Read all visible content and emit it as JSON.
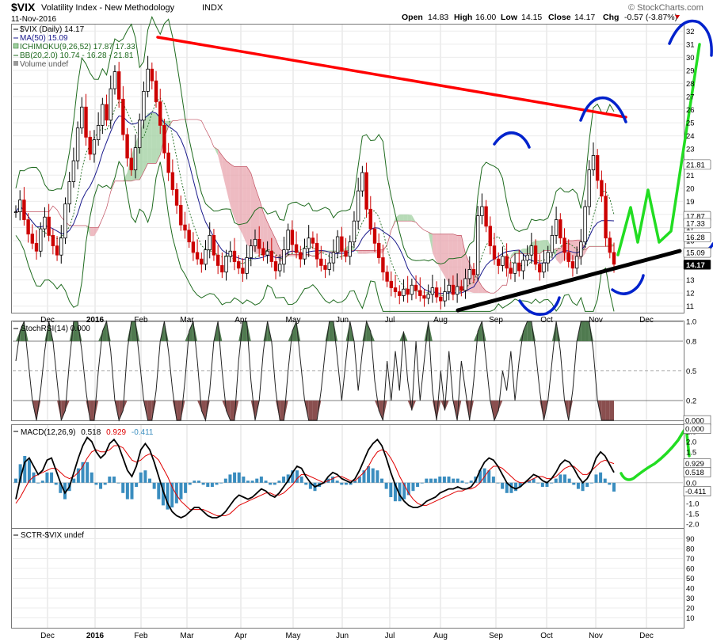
{
  "header": {
    "symbol": "$VIX",
    "name": "Volatility Index - New Methodology",
    "exchange": "INDX",
    "date": "11-Nov-2016",
    "open_label": "Open",
    "open": "14.83",
    "high_label": "High",
    "high": "16.00",
    "low_label": "Low",
    "low": "14.15",
    "close_label": "Close",
    "close": "14.17",
    "chg_label": "Chg",
    "chg": "-0.57 (-3.87%)",
    "watermark": "© StockCharts.com"
  },
  "colors": {
    "price_up": "#000000",
    "price_down": "#cc0000",
    "ma": "#1a1a8c",
    "bb": "#1f6b1f",
    "kumo_bear": "#e8a4ad",
    "kumo_bull": "#9fcf9f",
    "macd": "#000000",
    "signal": "#e00000",
    "hist": "#3a8dbf",
    "red_trend": "#ff0000",
    "black_trend": "#000000",
    "blue_annot": "#0022cc",
    "green_annot": "#22dd22",
    "stoch": "#222222",
    "ob_fill": "#4f7a4f",
    "os_fill": "#8a4f4f"
  },
  "chart_data": [
    {
      "type": "line",
      "panel": "price",
      "legend": [
        "$VIX (Daily) 14.17",
        "MA(50) 15.09",
        "ICHIMOKU(9,26,52) 17.87 17.33",
        "BB(20,2.0) 10.74 - 16.28 - 21.81",
        "Volume undef"
      ],
      "x_labels": [
        "Dec",
        "2016",
        "Feb",
        "Mar",
        "Apr",
        "May",
        "Jun",
        "Jul",
        "Aug",
        "Sep",
        "Oct",
        "Nov",
        "Dec"
      ],
      "y_ticks": [
        11,
        12,
        13,
        14,
        15,
        16,
        17,
        18,
        19,
        20,
        21,
        22,
        23,
        24,
        25,
        26,
        27,
        28,
        29,
        30,
        31,
        32
      ],
      "ylim": [
        10.5,
        32.5
      ],
      "right_tags": [
        {
          "value": 21.81,
          "label": "21.81"
        },
        {
          "value": 17.87,
          "label": "17.87"
        },
        {
          "value": 17.33,
          "label": "17.33"
        },
        {
          "value": 16.28,
          "label": "16.28"
        },
        {
          "value": 15.09,
          "label": "15.09"
        },
        {
          "value": 14.17,
          "label": "14.17"
        }
      ],
      "close_series": [
        18.2,
        19.1,
        17.6,
        16.5,
        15.8,
        15.2,
        16.9,
        17.8,
        16.4,
        15.6,
        14.9,
        16.2,
        18.8,
        20.5,
        22.1,
        24.6,
        26.2,
        23.9,
        22.6,
        23.7,
        24.8,
        26.4,
        25.2,
        27.6,
        28.9,
        26.8,
        24.1,
        22.3,
        21.4,
        23.1,
        25.2,
        27.4,
        29.1,
        28.2,
        26.6,
        24.8,
        22.7,
        21.2,
        19.9,
        18.7,
        17.2,
        16.8,
        15.9,
        15.1,
        14.6,
        14.2,
        15.3,
        16.4,
        14.9,
        14.1,
        13.6,
        14.8,
        15.2,
        14.4,
        13.9,
        13.5,
        14.7,
        15.6,
        16.1,
        15.4,
        14.9,
        15.2,
        14.4,
        13.7,
        14.2,
        15.3,
        16.8,
        15.7,
        15.1,
        14.6,
        15.4,
        16.2,
        15.8,
        14.6,
        14.1,
        13.8,
        14.3,
        15.1,
        16.3,
        15.2,
        14.8,
        15.9,
        17.5,
        19.8,
        21.2,
        18.4,
        16.9,
        15.8,
        14.7,
        13.6,
        12.9,
        12.4,
        12.1,
        11.8,
        12.3,
        11.9,
        12.6,
        12.2,
        11.8,
        11.6,
        11.9,
        12.4,
        11.7,
        11.4,
        12.1,
        12.6,
        11.9,
        12.5,
        12.2,
        13.1,
        13.8,
        13.4,
        17.9,
        18.6,
        17.1,
        15.6,
        14.6,
        14.1,
        14.8,
        13.9,
        13.5,
        14.3,
        13.7,
        14.5,
        14.9,
        15.6,
        14.2,
        13.6,
        14.3,
        15.1,
        16.4,
        17.6,
        16.2,
        15.1,
        14.4,
        13.9,
        14.8,
        15.9,
        18.6,
        21.4,
        22.5,
        20.6,
        19.4,
        16.2,
        15.1,
        14.2
      ],
      "ylabel": ""
    },
    {
      "type": "area",
      "panel": "stochrsi",
      "legend": "StochRSI(14) 0.000",
      "y_ticks": [
        0.2,
        0.5,
        0.8,
        1.0
      ],
      "ylim": [
        0,
        1
      ],
      "right_tag": "0.000",
      "values": [
        0.6,
        0.9,
        1.0,
        0.6,
        0.2,
        0.0,
        0.3,
        0.7,
        1.0,
        0.8,
        0.4,
        0.0,
        0.1,
        0.6,
        1.0,
        1.0,
        0.7,
        0.3,
        0.0,
        0.0,
        0.5,
        0.9,
        1.0,
        0.7,
        0.2,
        0.0,
        0.1,
        0.7,
        1.0,
        1.0,
        0.6,
        0.2,
        0.0,
        0.0,
        0.3,
        0.8,
        1.0,
        0.7,
        0.3,
        0.0,
        0.0,
        0.4,
        0.9,
        1.0,
        0.6,
        0.1,
        0.0,
        0.3,
        0.8,
        1.0,
        0.5,
        0.1,
        0.0,
        0.0,
        0.6,
        1.0,
        1.0,
        0.4,
        0.0,
        0.2,
        0.7,
        1.0,
        0.8,
        0.3,
        0.0,
        0.0,
        0.5,
        0.9,
        1.0,
        0.6,
        0.2,
        0.0,
        0.0,
        0.0,
        0.3,
        0.7,
        1.0,
        1.0,
        0.6,
        0.2,
        0.6,
        1.0,
        0.8,
        0.3,
        0.7,
        1.0,
        0.9,
        0.4,
        0.1,
        0.0,
        0.6,
        0.2,
        0.7,
        0.3,
        0.9,
        0.4,
        0.1,
        0.8,
        0.2,
        0.6,
        1.0,
        0.3,
        0.0,
        0.5,
        0.1,
        0.7,
        0.2,
        0.0,
        0.6,
        0.3,
        0.0,
        0.4,
        0.9,
        1.0,
        0.6,
        0.2,
        0.0,
        0.1,
        0.5,
        0.3,
        0.7,
        0.2,
        0.6,
        0.9,
        1.0,
        1.0,
        0.7,
        0.3,
        0.0,
        0.2,
        0.6,
        1.0,
        0.7,
        0.2,
        0.0,
        0.3,
        0.8,
        1.0,
        1.0,
        1.0,
        0.7,
        0.2,
        0.0,
        0.0,
        0.0,
        0.0
      ]
    },
    {
      "type": "line",
      "panel": "macd",
      "legend_label": "MACD(12,26,9)",
      "legend_values": [
        "0.518",
        "0.929",
        "-0.411"
      ],
      "y_ticks": [
        -2.0,
        -1.5,
        -1.0,
        -0.5,
        0.0,
        0.5,
        1.0,
        1.5,
        2.0,
        2.5
      ],
      "ylim": [
        -2.2,
        2.8
      ],
      "right_tags": [
        {
          "value": 2.62,
          "label": "0.000"
        },
        {
          "value": 0.929,
          "label": "0.929"
        },
        {
          "value": 0.518,
          "label": "0.518"
        },
        {
          "value": -0.411,
          "label": "-0.411"
        }
      ],
      "macd": [
        -0.8,
        0.2,
        1.0,
        1.2,
        0.8,
        0.4,
        0.6,
        1.1,
        1.2,
        0.6,
        0.0,
        -0.5,
        -0.2,
        0.5,
        1.2,
        1.8,
        2.2,
        2.0,
        1.5,
        1.2,
        1.4,
        1.9,
        2.1,
        1.8,
        1.2,
        0.6,
        0.3,
        0.8,
        1.6,
        1.9,
        1.6,
        1.0,
        0.3,
        -0.4,
        -1.0,
        -1.4,
        -1.6,
        -1.7,
        -1.6,
        -1.4,
        -1.2,
        -1.2,
        -1.4,
        -1.6,
        -1.7,
        -1.7,
        -1.6,
        -1.4,
        -1.1,
        -0.8,
        -0.6,
        -0.7,
        -0.8,
        -0.7,
        -0.5,
        -0.3,
        -0.4,
        -0.6,
        -0.7,
        -0.5,
        -0.2,
        0.1,
        0.5,
        0.8,
        0.7,
        0.3,
        0.0,
        -0.2,
        -0.1,
        0.0,
        0.3,
        0.5,
        0.4,
        0.2,
        0.1,
        0.0,
        0.2,
        0.6,
        1.1,
        1.6,
        1.9,
        2.1,
        1.8,
        1.2,
        0.5,
        -0.1,
        -0.6,
        -0.9,
        -1.1,
        -1.2,
        -1.2,
        -1.1,
        -0.9,
        -0.8,
        -0.7,
        -0.5,
        -0.4,
        -0.3,
        -0.3,
        -0.2,
        -0.3,
        -0.3,
        -0.2,
        0.1,
        0.6,
        1.0,
        1.2,
        1.1,
        0.8,
        0.4,
        0.0,
        -0.2,
        -0.3,
        -0.2,
        0.0,
        0.2,
        0.4,
        0.3,
        0.1,
        0.0,
        0.2,
        0.5,
        0.9,
        1.1,
        1.0,
        0.7,
        0.3,
        0.0,
        0.2,
        0.6,
        1.2,
        1.5,
        1.3,
        0.9,
        0.5
      ],
      "signal": [
        -1.0,
        -0.7,
        -0.3,
        0.1,
        0.3,
        0.4,
        0.5,
        0.6,
        0.7,
        0.7,
        0.5,
        0.3,
        0.2,
        0.3,
        0.5,
        0.8,
        1.2,
        1.5,
        1.6,
        1.5,
        1.5,
        1.6,
        1.8,
        1.8,
        1.7,
        1.4,
        1.1,
        1.0,
        1.1,
        1.3,
        1.4,
        1.3,
        1.1,
        0.7,
        0.3,
        -0.2,
        -0.6,
        -0.9,
        -1.1,
        -1.3,
        -1.3,
        -1.3,
        -1.3,
        -1.4,
        -1.5,
        -1.6,
        -1.6,
        -1.6,
        -1.5,
        -1.3,
        -1.1,
        -1.0,
        -0.9,
        -0.8,
        -0.7,
        -0.6,
        -0.5,
        -0.5,
        -0.6,
        -0.6,
        -0.5,
        -0.3,
        -0.1,
        0.2,
        0.4,
        0.4,
        0.3,
        0.2,
        0.1,
        0.0,
        0.1,
        0.2,
        0.3,
        0.3,
        0.2,
        0.1,
        0.1,
        0.3,
        0.5,
        0.8,
        1.2,
        1.5,
        1.6,
        1.5,
        1.2,
        0.8,
        0.3,
        -0.1,
        -0.5,
        -0.8,
        -1.0,
        -1.1,
        -1.1,
        -1.0,
        -0.9,
        -0.8,
        -0.7,
        -0.6,
        -0.5,
        -0.4,
        -0.4,
        -0.3,
        -0.3,
        -0.2,
        0.0,
        0.3,
        0.6,
        0.8,
        0.8,
        0.7,
        0.5,
        0.3,
        0.1,
        0.0,
        0.0,
        0.1,
        0.2,
        0.3,
        0.3,
        0.2,
        0.2,
        0.3,
        0.5,
        0.7,
        0.8,
        0.8,
        0.6,
        0.4,
        0.4,
        0.6,
        0.8,
        1.0,
        1.1,
        1.0,
        0.93
      ]
    },
    {
      "type": "line",
      "panel": "sctr",
      "legend": "SCTR-$VIX undef",
      "y_ticks": [
        10,
        20,
        30,
        40,
        50,
        60,
        70,
        80,
        90
      ],
      "ylim": [
        0,
        100
      ]
    }
  ]
}
